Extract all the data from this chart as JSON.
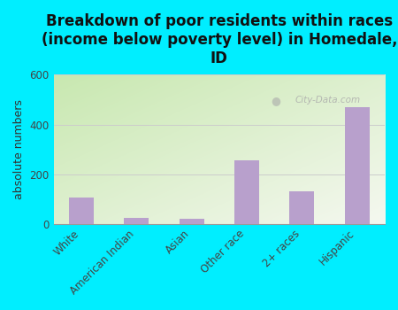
{
  "title": "Breakdown of poor residents within races\n(income below poverty level) in Homedale,\nID",
  "categories": [
    "White",
    "American Indian",
    "Asian",
    "Other race",
    "2+ races",
    "Hispanic"
  ],
  "values": [
    105,
    25,
    20,
    255,
    130,
    470
  ],
  "bar_color": "#b8a0cc",
  "ylabel": "absolute numbers",
  "ylim": [
    0,
    600
  ],
  "yticks": [
    0,
    200,
    400,
    600
  ],
  "background_outer": "#00eeff",
  "background_plot_top_left": "#c8e8b0",
  "background_plot_bottom_right": "#f5f8f0",
  "grid_color": "#cccccc",
  "watermark": "City-Data.com",
  "title_fontsize": 12,
  "ylabel_fontsize": 9,
  "tick_fontsize": 8.5
}
